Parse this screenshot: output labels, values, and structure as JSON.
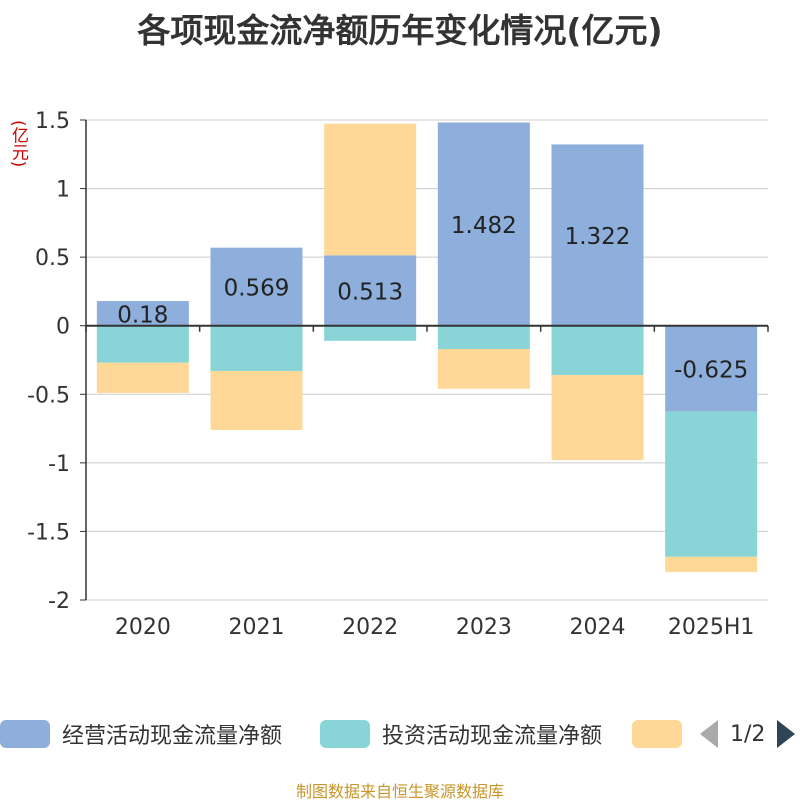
{
  "title": "各项现金流净额历年变化情况(亿元)",
  "unit_label": "(亿元)",
  "source": "制图数据来自恒生聚源数据库",
  "legend": {
    "items": [
      {
        "label": "经营活动现金流量净额",
        "color": "#8eaedb"
      },
      {
        "label": "投资活动现金流量净额",
        "color": "#88d4d7"
      },
      {
        "label": "",
        "color": "#ffd898"
      }
    ],
    "page": "1/2"
  },
  "chart_data": {
    "type": "bar",
    "stacked": true,
    "categories": [
      "2020",
      "2021",
      "2022",
      "2023",
      "2024",
      "2025H1"
    ],
    "ylim": [
      -2,
      1.5
    ],
    "yticks": [
      1.5,
      1,
      0.5,
      0,
      -0.5,
      -1,
      -1.5,
      -2
    ],
    "ytick_labels": [
      "1.5",
      "1",
      "0.5",
      "0",
      "-0.5",
      "-1",
      "-1.5",
      "-2"
    ],
    "grid": true,
    "legend_position": "bottom",
    "series": [
      {
        "name": "经营活动现金流量净额",
        "color": "#8eaedb",
        "values": [
          0.18,
          0.569,
          0.513,
          1.482,
          1.322,
          -0.625
        ],
        "labels": [
          "0.18",
          "0.569",
          "0.513",
          "1.482",
          "1.322",
          "-0.625"
        ]
      },
      {
        "name": "投资活动现金流量净额",
        "color": "#88d4d7",
        "values": [
          -0.27,
          -0.33,
          -0.11,
          -0.17,
          -0.36,
          -1.06
        ]
      },
      {
        "color": "#ffd898",
        "values": [
          -0.22,
          -0.43,
          0.96,
          -0.29,
          -0.62,
          -0.11
        ]
      }
    ]
  }
}
